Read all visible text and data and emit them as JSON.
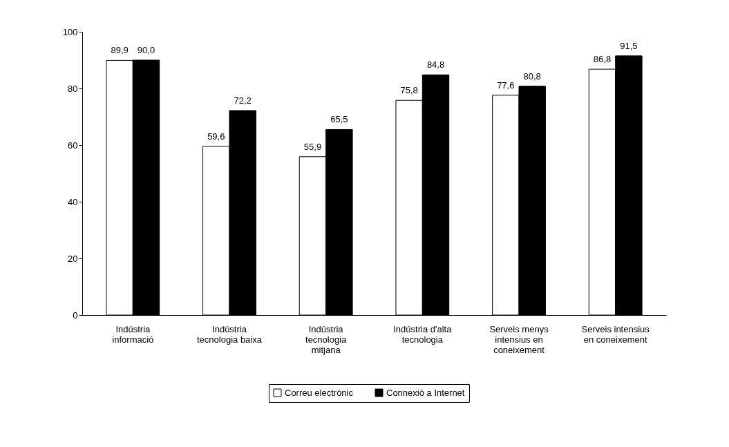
{
  "chart_data": {
    "type": "bar",
    "categories": [
      "Indústria informació",
      "Indústria tecnologia baixa",
      "Indústria tecnologia mitjana",
      "Indústria d'alta tecnologia",
      "Serveis menys intensius en coneixement",
      "Serveis intensius en coneixement"
    ],
    "series": [
      {
        "name": "Correu electrònic",
        "color": "#ffffff",
        "values": [
          89.9,
          59.6,
          55.9,
          75.8,
          77.6,
          86.8
        ],
        "value_labels": [
          "89,9",
          "59,6",
          "55,9",
          "75,8",
          "77,6",
          "86,8"
        ]
      },
      {
        "name": "Connexió a Internet",
        "color": "#000000",
        "values": [
          90.0,
          72.2,
          65.5,
          84.8,
          80.8,
          91.5
        ],
        "value_labels": [
          "90,0",
          "72,2",
          "65,5",
          "84,8",
          "80,8",
          "91,5"
        ]
      }
    ],
    "ylim": [
      0,
      100
    ],
    "yticks": [
      0,
      20,
      40,
      60,
      80,
      100
    ],
    "grid": false,
    "legend": "bottom"
  }
}
